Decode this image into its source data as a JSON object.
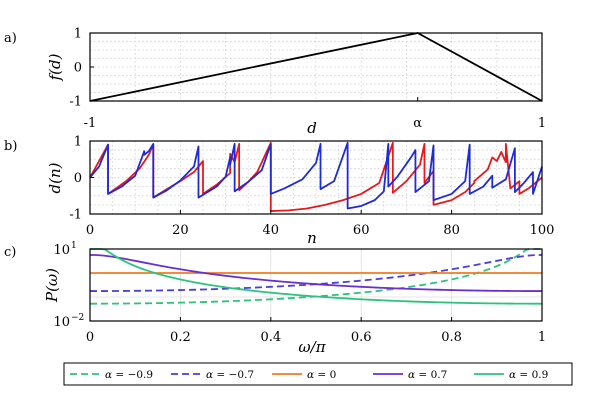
{
  "panel_labels": [
    "a)",
    "b)",
    "c)"
  ],
  "colors": {
    "black": "#000000",
    "red": "#e41a1c",
    "blue": "#1f2bd6",
    "green_m09": "#2ec27e",
    "purple_m07": "#4b3fd6",
    "orange_0": "#f07c21",
    "purple_07": "#6a2fd0",
    "green_09": "#2ec27e"
  },
  "chart_data": [
    {
      "type": "line",
      "panel": "a)",
      "xlabel": "d",
      "ylabel": "f(d)",
      "xlim": [
        -1,
        1
      ],
      "ylim": [
        -1,
        1
      ],
      "xticklabels": [
        "-1",
        "α",
        "1"
      ],
      "xticks": [
        -1,
        0.45,
        1
      ],
      "yticklabels": [
        "-1",
        "0",
        "1"
      ],
      "yticks": [
        -1,
        0,
        1
      ],
      "alpha": 0.45,
      "grid": "dotted",
      "series": [
        {
          "x": [
            -1,
            0.45,
            1
          ],
          "y": [
            -1,
            1,
            -1
          ]
        }
      ]
    },
    {
      "type": "line",
      "panel": "b)",
      "xlabel": "n",
      "ylabel": "d(n)",
      "xlim": [
        0,
        100
      ],
      "ylim": [
        -1,
        1
      ],
      "xticklabels": [
        "0",
        "20",
        "40",
        "60",
        "80",
        "100"
      ],
      "xticks": [
        0,
        20,
        40,
        60,
        80,
        100
      ],
      "yticklabels": [
        "-1",
        "0",
        "1"
      ],
      "yticks": [
        -1,
        0,
        1
      ],
      "grid": "dotted",
      "series": [
        {
          "color": "red",
          "x": [
            0,
            4,
            4,
            8,
            11,
            13,
            14,
            14,
            17,
            20,
            23,
            25,
            25,
            28,
            31,
            31,
            32,
            33,
            33,
            35,
            37,
            40,
            40,
            44,
            48,
            52,
            56,
            60,
            64,
            67,
            67,
            70,
            73,
            74,
            74,
            76,
            76,
            80,
            83,
            85,
            85,
            88,
            89,
            90,
            91,
            92,
            92,
            93,
            95,
            95,
            97,
            98,
            100
          ],
          "y": [
            0,
            0.9,
            -0.45,
            -0.1,
            0.25,
            0.62,
            0.9,
            -0.55,
            -0.32,
            -0.1,
            0.15,
            0.45,
            -0.45,
            -0.2,
            0.12,
            0.65,
            0.42,
            0.92,
            -0.35,
            -0.12,
            0.15,
            0.95,
            -0.92,
            -0.9,
            -0.85,
            -0.75,
            -0.62,
            -0.45,
            -0.15,
            0.95,
            -0.42,
            -0.1,
            0.35,
            0.92,
            -0.15,
            0.18,
            -0.75,
            -0.62,
            -0.4,
            -0.15,
            -0.1,
            0.22,
            0.55,
            0.45,
            0.7,
            0.42,
            0.92,
            -0.3,
            -0.1,
            -0.45,
            -0.3,
            -0.2,
            0.0
          ]
        },
        {
          "color": "blue",
          "x": [
            0,
            2,
            4,
            4,
            7,
            10,
            12,
            12,
            13,
            14,
            14,
            17,
            20,
            23,
            24,
            24,
            26,
            28,
            30,
            31,
            31,
            32,
            32,
            35,
            38,
            40,
            40,
            43,
            47,
            50,
            51,
            51,
            54,
            57,
            57,
            60,
            63,
            65,
            66,
            66,
            68,
            71,
            72,
            72,
            75,
            76,
            76,
            80,
            83,
            84,
            84,
            87,
            89,
            89,
            92,
            94,
            94,
            96,
            98,
            98,
            100
          ],
          "y": [
            0,
            0.3,
            0.9,
            -0.45,
            -0.25,
            0.05,
            0.72,
            0.62,
            0.72,
            0.92,
            -0.55,
            -0.35,
            -0.08,
            0.3,
            0.85,
            -0.55,
            -0.4,
            -0.25,
            0.02,
            0.55,
            0.35,
            0.92,
            -0.38,
            -0.12,
            0.2,
            0.92,
            -0.45,
            -0.3,
            -0.05,
            0.4,
            0.92,
            -0.32,
            -0.1,
            0.95,
            -0.85,
            -0.78,
            -0.62,
            -0.38,
            0.92,
            -0.25,
            0.02,
            0.55,
            0.75,
            -0.4,
            -0.1,
            0.88,
            -0.62,
            -0.45,
            -0.1,
            0.9,
            -0.45,
            -0.25,
            0.05,
            -0.28,
            -0.05,
            0.8,
            -0.4,
            -0.15,
            0.15,
            -0.45,
            0.3
          ]
        }
      ]
    },
    {
      "type": "line",
      "panel": "c)",
      "xlabel": "ω/π",
      "ylabel": "P(ω)",
      "xlim": [
        0,
        1
      ],
      "ylim": [
        0.01,
        10
      ],
      "yscale": "log",
      "xticklabels": [
        "0",
        "0.2",
        "0.4",
        "0.6",
        "0.8",
        "1"
      ],
      "xticks": [
        0,
        0.2,
        0.4,
        0.6,
        0.8,
        1
      ],
      "yticklabels": [
        "10^1",
        "10^-2"
      ],
      "yticks": [
        10,
        0.01
      ],
      "grid": "solid",
      "legend": "bottom",
      "series": [
        {
          "name": "α = −0.9",
          "label_prefix": "α",
          "label_value": "−0.9",
          "color": "green_m09",
          "dash": "dashed",
          "alpha": -0.9
        },
        {
          "name": "α = −0.7",
          "label_prefix": "α",
          "label_value": "−0.7",
          "color": "purple_m07",
          "dash": "dashed",
          "alpha": -0.7
        },
        {
          "name": "α = 0",
          "label_prefix": "α",
          "label_value": "0",
          "color": "orange_0",
          "dash": "solid",
          "alpha": 0
        },
        {
          "name": "α = 0.7",
          "label_prefix": "α",
          "label_value": "0.7",
          "color": "purple_07",
          "dash": "solid",
          "alpha": 0.7
        },
        {
          "name": "α = 0.9",
          "label_prefix": "α",
          "label_value": "0.9",
          "color": "green_09",
          "dash": "solid",
          "alpha": 0.9
        }
      ]
    }
  ]
}
